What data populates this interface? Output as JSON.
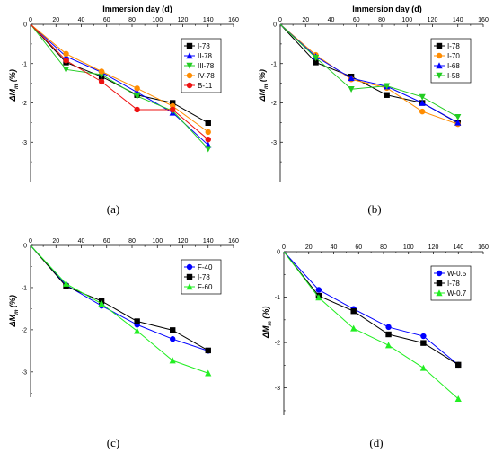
{
  "chart_data": [
    {
      "type": "line",
      "caption": "(a)",
      "xlabel": "Immersion day (d)",
      "ylabel": "ΔM_m (%)",
      "xlim": [
        0,
        160
      ],
      "ylim": [
        -4,
        0
      ],
      "xticks": [
        0,
        20,
        40,
        60,
        80,
        100,
        120,
        140,
        160
      ],
      "yticks": [
        0,
        -1,
        -2,
        -3
      ],
      "legend_position": "top-right",
      "x": [
        0,
        28,
        56,
        84,
        112,
        140
      ],
      "series": [
        {
          "name": "I-78",
          "color": "#000000",
          "marker": "square",
          "values": [
            0,
            -0.97,
            -1.33,
            -1.8,
            -2.0,
            -2.51
          ]
        },
        {
          "name": "II-78",
          "color": "#0000ff",
          "marker": "triangle",
          "values": [
            0,
            -0.82,
            -1.22,
            -1.73,
            -2.25,
            -3.07
          ]
        },
        {
          "name": "III-78",
          "color": "#22cc22",
          "marker": "triangle-down",
          "values": [
            0,
            -1.15,
            -1.28,
            -1.83,
            -2.2,
            -3.17
          ]
        },
        {
          "name": "IV-78",
          "color": "#ff8c00",
          "marker": "circle",
          "values": [
            0,
            -0.75,
            -1.2,
            -1.63,
            -2.08,
            -2.74
          ]
        },
        {
          "name": "B-11",
          "color": "#ee1111",
          "marker": "circle",
          "values": [
            0,
            -0.92,
            -1.46,
            -2.17,
            -2.17,
            -2.93
          ]
        }
      ]
    },
    {
      "type": "line",
      "caption": "(b)",
      "xlabel": "Immersion day (d)",
      "ylabel": "ΔM_m (%)",
      "xlim": [
        0,
        160
      ],
      "ylim": [
        -4,
        0
      ],
      "xticks": [
        0,
        20,
        40,
        60,
        80,
        100,
        120,
        140,
        160
      ],
      "yticks": [
        0,
        -1,
        -2,
        -3
      ],
      "legend_position": "top-right",
      "x": [
        0,
        28,
        56,
        84,
        112,
        140
      ],
      "series": [
        {
          "name": "I-78",
          "color": "#000000",
          "marker": "square",
          "values": [
            0,
            -0.97,
            -1.33,
            -1.8,
            -2.0,
            -2.51
          ]
        },
        {
          "name": "I-70",
          "color": "#ff8c00",
          "marker": "circle",
          "values": [
            0,
            -0.78,
            -1.4,
            -1.62,
            -2.22,
            -2.54
          ]
        },
        {
          "name": "I-68",
          "color": "#0000ff",
          "marker": "triangle",
          "values": [
            0,
            -0.82,
            -1.37,
            -1.58,
            -2.0,
            -2.5
          ]
        },
        {
          "name": "I-58",
          "color": "#22cc22",
          "marker": "triangle-down",
          "values": [
            0,
            -0.85,
            -1.65,
            -1.57,
            -1.85,
            -2.36
          ]
        }
      ]
    },
    {
      "type": "line",
      "caption": "(c)",
      "xlabel": "",
      "ylabel": "ΔM_m (%)",
      "xlim": [
        0,
        160
      ],
      "ylim": [
        -3.6,
        0
      ],
      "xticks": [
        0,
        20,
        40,
        60,
        80,
        100,
        120,
        140,
        160
      ],
      "yticks": [
        0,
        -1,
        -2,
        -3
      ],
      "legend_position": "top-right",
      "x": [
        0,
        28,
        56,
        84,
        112,
        140
      ],
      "series": [
        {
          "name": "F-40",
          "color": "#0000ff",
          "marker": "circle",
          "values": [
            0,
            -0.94,
            -1.43,
            -1.88,
            -2.22,
            -2.5
          ]
        },
        {
          "name": "I-78",
          "color": "#000000",
          "marker": "square",
          "values": [
            0,
            -0.97,
            -1.32,
            -1.8,
            -2.01,
            -2.49
          ]
        },
        {
          "name": "F-60",
          "color": "#22ee22",
          "marker": "triangle",
          "values": [
            0,
            -0.91,
            -1.38,
            -2.03,
            -2.73,
            -3.03
          ]
        }
      ]
    },
    {
      "type": "line",
      "caption": "(d)",
      "xlabel": "",
      "ylabel": "ΔM_m (%)",
      "xlim": [
        0,
        160
      ],
      "ylim": [
        -3.6,
        0
      ],
      "xticks": [
        0,
        20,
        40,
        60,
        80,
        100,
        120,
        140,
        160
      ],
      "yticks": [
        0,
        -1,
        -2,
        -3
      ],
      "legend_position": "top-right",
      "x": [
        0,
        28,
        56,
        84,
        112,
        140
      ],
      "series": [
        {
          "name": "W-0.5",
          "color": "#0000ff",
          "marker": "circle",
          "values": [
            0,
            -0.84,
            -1.26,
            -1.66,
            -1.86,
            -2.49
          ]
        },
        {
          "name": "I-78",
          "color": "#000000",
          "marker": "square",
          "values": [
            0,
            -0.97,
            -1.31,
            -1.82,
            -2.01,
            -2.49
          ]
        },
        {
          "name": "W-0.7",
          "color": "#22ee22",
          "marker": "triangle",
          "values": [
            0,
            -1.01,
            -1.69,
            -2.06,
            -2.56,
            -3.24
          ]
        }
      ]
    }
  ]
}
